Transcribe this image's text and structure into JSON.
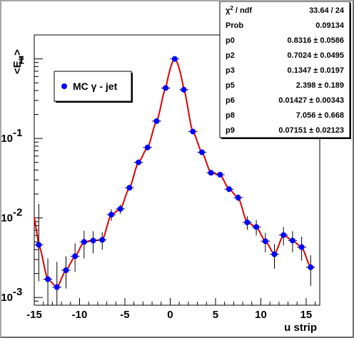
{
  "chart_data": {
    "type": "scatter",
    "xlabel": "u strip",
    "ylabel": "<E_u>",
    "xlim": [
      -15,
      16.5
    ],
    "ylim": [
      0.0008,
      2.0
    ],
    "yscale": "log",
    "x_ticks": [
      "-15",
      "-10",
      "-5",
      "0",
      "5",
      "10",
      "15"
    ],
    "y_ticks": [
      {
        "value": 1,
        "label": "1"
      },
      {
        "value": 0.1,
        "label": "10",
        "exp": "-1"
      },
      {
        "value": 0.01,
        "label": "10",
        "exp": "-2"
      },
      {
        "value": 0.001,
        "label": "10",
        "exp": "-3"
      }
    ],
    "legend": {
      "label": "MC γ - jet",
      "placement": "upper-left"
    },
    "series": [
      {
        "name": "MC γ - jet",
        "marker_color": "#0000ff",
        "points": [
          {
            "x": -14.5,
            "y": 0.0046,
            "ylo": 0.0016,
            "yhi": 0.015
          },
          {
            "x": -13.5,
            "y": 0.0017,
            "ylo": 0.0008,
            "yhi": 0.0031
          },
          {
            "x": -12.5,
            "y": 0.00135,
            "ylo": 0.0008,
            "yhi": 0.0028
          },
          {
            "x": -11.5,
            "y": 0.0022,
            "ylo": 0.0013,
            "yhi": 0.0033
          },
          {
            "x": -10.5,
            "y": 0.0033,
            "ylo": 0.0021,
            "yhi": 0.0048
          },
          {
            "x": -9.5,
            "y": 0.005,
            "ylo": 0.0031,
            "yhi": 0.0069
          },
          {
            "x": -8.5,
            "y": 0.0052,
            "ylo": 0.0036,
            "yhi": 0.0068
          },
          {
            "x": -7.5,
            "y": 0.0053,
            "ylo": 0.004,
            "yhi": 0.0066
          },
          {
            "x": -6.5,
            "y": 0.011,
            "ylo": 0.0092,
            "yhi": 0.0128
          },
          {
            "x": -5.5,
            "y": 0.013,
            "ylo": 0.0113,
            "yhi": 0.0147
          },
          {
            "x": -4.5,
            "y": 0.024,
            "ylo": 0.0222,
            "yhi": 0.0258
          },
          {
            "x": -3.5,
            "y": 0.05,
            "ylo": 0.048,
            "yhi": 0.052
          },
          {
            "x": -2.5,
            "y": 0.077,
            "ylo": 0.074,
            "yhi": 0.08
          },
          {
            "x": -1.5,
            "y": 0.165,
            "ylo": 0.16,
            "yhi": 0.17
          },
          {
            "x": -0.5,
            "y": 0.43,
            "ylo": 0.42,
            "yhi": 0.44
          },
          {
            "x": 0.5,
            "y": 1.0,
            "ylo": 0.98,
            "yhi": 1.02
          },
          {
            "x": 1.5,
            "y": 0.41,
            "ylo": 0.4,
            "yhi": 0.42
          },
          {
            "x": 2.5,
            "y": 0.122,
            "ylo": 0.119,
            "yhi": 0.125
          },
          {
            "x": 3.5,
            "y": 0.067,
            "ylo": 0.064,
            "yhi": 0.07
          },
          {
            "x": 4.5,
            "y": 0.037,
            "ylo": 0.035,
            "yhi": 0.039
          },
          {
            "x": 5.5,
            "y": 0.035,
            "ylo": 0.0326,
            "yhi": 0.0374
          },
          {
            "x": 6.5,
            "y": 0.023,
            "ylo": 0.0212,
            "yhi": 0.0248
          },
          {
            "x": 7.5,
            "y": 0.018,
            "ylo": 0.0162,
            "yhi": 0.0198
          },
          {
            "x": 8.5,
            "y": 0.0088,
            "ylo": 0.0071,
            "yhi": 0.0105
          },
          {
            "x": 9.5,
            "y": 0.0077,
            "ylo": 0.006,
            "yhi": 0.0094
          },
          {
            "x": 10.5,
            "y": 0.0051,
            "ylo": 0.0037,
            "yhi": 0.0065
          },
          {
            "x": 11.5,
            "y": 0.0035,
            "ylo": 0.0023,
            "yhi": 0.0047
          },
          {
            "x": 12.5,
            "y": 0.0061,
            "ylo": 0.0045,
            "yhi": 0.0077
          },
          {
            "x": 13.5,
            "y": 0.0052,
            "ylo": 0.0037,
            "yhi": 0.0068
          },
          {
            "x": 14.5,
            "y": 0.0043,
            "ylo": 0.0029,
            "yhi": 0.0058
          },
          {
            "x": 15.5,
            "y": 0.0024,
            "ylo": 0.0014,
            "yhi": 0.0034
          }
        ]
      }
    ],
    "fit": {
      "color": "#dd0000",
      "peak_x": 0.5,
      "stats": [
        {
          "name": "χ",
          "sup": "2",
          "suffix": " / ndf",
          "value": "33.64 / 24"
        },
        {
          "name": "Prob",
          "value": "0.09134"
        },
        {
          "name": "p0",
          "value": "0.8316 ± 0.0586"
        },
        {
          "name": "p2",
          "value": "0.7024 ± 0.0495"
        },
        {
          "name": "p3",
          "value": "0.1347 ± 0.0197"
        },
        {
          "name": "p5",
          "value": "2.398 ± 0.189"
        },
        {
          "name": "p6",
          "value": "0.01427 ± 0.00343"
        },
        {
          "name": "p8",
          "value": "7.056 ± 0.668"
        },
        {
          "name": "p9",
          "value": "0.07151 ± 0.02123"
        }
      ]
    }
  }
}
